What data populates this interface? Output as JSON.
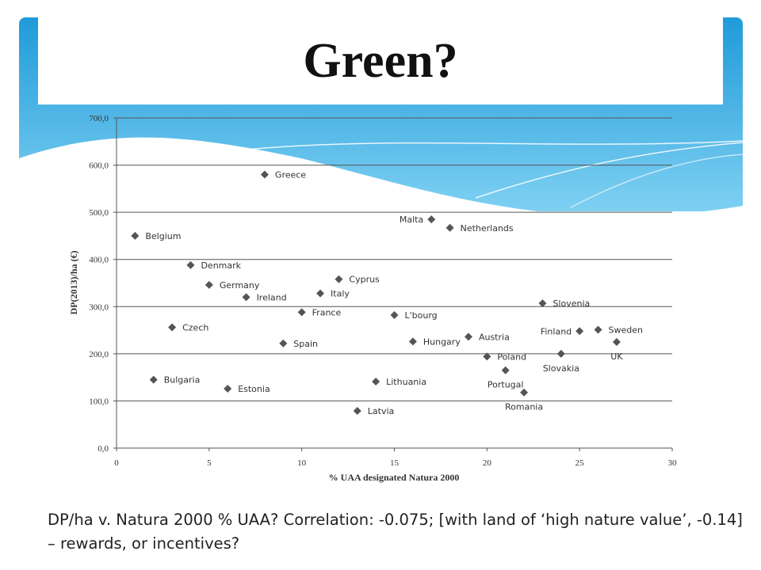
{
  "slide": {
    "title": "Green?",
    "caption_line1": "DP/ha v. Natura 2000 % UAA? Correlation: -0.075; [with land of ‘high nature value’, -0.14]",
    "caption_line2": "– rewards, or incentives?"
  },
  "colors": {
    "accent": "#29a8e0",
    "marker": "#555555",
    "grid": "#555555"
  },
  "chart_data": {
    "type": "scatter",
    "xlabel": "% UAA designated Natura 2000",
    "ylabel": "DP(2013)/ha (€)",
    "xlim": [
      0,
      30
    ],
    "ylim": [
      0,
      700
    ],
    "xticks": [
      "0",
      "5",
      "10",
      "15",
      "20",
      "25",
      "30"
    ],
    "yticks": [
      "0,0",
      "100,0",
      "200,0",
      "300,0",
      "400,0",
      "500,0",
      "600,0",
      "700,0"
    ],
    "grid": "horizontal",
    "points": [
      {
        "label": "Greece",
        "x": 8,
        "y": 580,
        "pos": "right"
      },
      {
        "label": "Malta",
        "x": 17,
        "y": 485,
        "pos": "left"
      },
      {
        "label": "Netherlands",
        "x": 18,
        "y": 467,
        "pos": "right"
      },
      {
        "label": "Belgium",
        "x": 1,
        "y": 450,
        "pos": "right"
      },
      {
        "label": "Denmark",
        "x": 4,
        "y": 388,
        "pos": "right"
      },
      {
        "label": "Cyprus",
        "x": 12,
        "y": 358,
        "pos": "right"
      },
      {
        "label": "Germany",
        "x": 5,
        "y": 346,
        "pos": "right"
      },
      {
        "label": "Italy",
        "x": 11,
        "y": 328,
        "pos": "right"
      },
      {
        "label": "Ireland",
        "x": 7,
        "y": 320,
        "pos": "right"
      },
      {
        "label": "Slovenia",
        "x": 23,
        "y": 307,
        "pos": "right"
      },
      {
        "label": "France",
        "x": 10,
        "y": 288,
        "pos": "right"
      },
      {
        "label": "L'bourg",
        "x": 15,
        "y": 282,
        "pos": "right"
      },
      {
        "label": "Czech",
        "x": 3,
        "y": 256,
        "pos": "right"
      },
      {
        "label": "Sweden",
        "x": 26,
        "y": 251,
        "pos": "right"
      },
      {
        "label": "Finland",
        "x": 25,
        "y": 248,
        "pos": "left"
      },
      {
        "label": "Austria",
        "x": 19,
        "y": 236,
        "pos": "right"
      },
      {
        "label": "Hungary",
        "x": 16,
        "y": 226,
        "pos": "right"
      },
      {
        "label": "UK",
        "x": 27,
        "y": 225,
        "pos": "below"
      },
      {
        "label": "Spain",
        "x": 9,
        "y": 222,
        "pos": "right"
      },
      {
        "label": "Slovakia",
        "x": 24,
        "y": 200,
        "pos": "below"
      },
      {
        "label": "Poland",
        "x": 20,
        "y": 194,
        "pos": "right"
      },
      {
        "label": "Portugal",
        "x": 21,
        "y": 165,
        "pos": "below"
      },
      {
        "label": "Bulgaria",
        "x": 2,
        "y": 145,
        "pos": "right"
      },
      {
        "label": "Lithuania",
        "x": 14,
        "y": 141,
        "pos": "right"
      },
      {
        "label": "Estonia",
        "x": 6,
        "y": 126,
        "pos": "right"
      },
      {
        "label": "Romania",
        "x": 22,
        "y": 118,
        "pos": "below"
      },
      {
        "label": "Latvia",
        "x": 13,
        "y": 79,
        "pos": "right"
      }
    ]
  }
}
